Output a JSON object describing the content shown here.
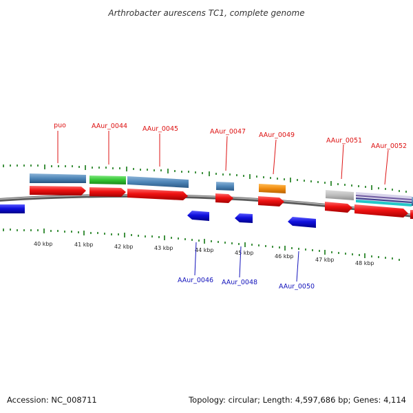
{
  "title": "Arthrobacter aurescens TC1, complete genome",
  "footer": {
    "accession": "Accession: NC_008711",
    "summary": "Topology: circular; Length: 4,597,686 bp; Genes: 4,114"
  },
  "colors": {
    "forward_gene": "#ee1111",
    "reverse_gene": "#1111dd",
    "backbone": "#8a8a8a",
    "tick": "#117711",
    "feature_blue": "#4f86b8",
    "feature_green": "#33c433",
    "feature_orange": "#f08c10",
    "feature_gray": "#bdbdbd",
    "feature_purple": "#6f5aa0",
    "feature_cyan": "#22c8c8"
  },
  "kbp_labels": [
    "40 kbp",
    "41 kbp",
    "42 kbp",
    "43 kbp",
    "44 kbp",
    "45 kbp",
    "46 kbp",
    "47 kbp",
    "48 kbp"
  ],
  "forward_labels": [
    "puo",
    "AAur_0044",
    "AAur_0045",
    "AAur_0047",
    "AAur_0049",
    "AAur_0051",
    "AAur_0052"
  ],
  "reverse_labels": [
    "AAur_0046",
    "AAur_0048",
    "AAur_0050"
  ]
}
